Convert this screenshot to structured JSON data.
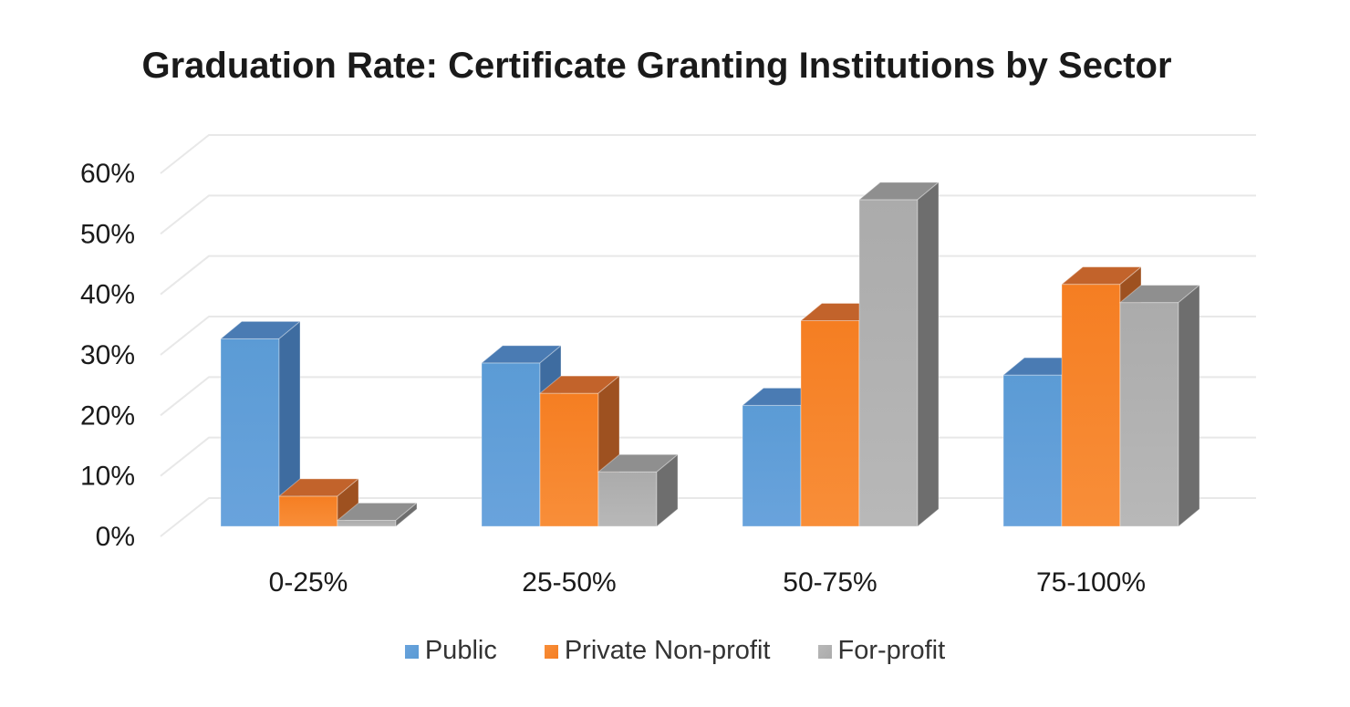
{
  "chart_data": {
    "type": "bar",
    "variant": "3d-column",
    "title": "Graduation Rate: Certificate Granting Institutions by Sector",
    "categories": [
      "0-25%",
      "25-50%",
      "50-75%",
      "75-100%"
    ],
    "series": [
      {
        "name": "Public",
        "values": [
          31,
          27,
          20,
          25
        ],
        "colors": {
          "front": "#5B9BD5",
          "front_light": "#69A3DC",
          "top": "#4A7BB3",
          "side": "#3E6CA0"
        }
      },
      {
        "name": "Private Non-profit",
        "values": [
          5,
          22,
          34,
          40
        ],
        "colors": {
          "front": "#F57E22",
          "front_light": "#F88E39",
          "top": "#C2632B",
          "side": "#9E5120"
        }
      },
      {
        "name": "For-profit",
        "values": [
          1,
          9,
          54,
          37
        ],
        "colors": {
          "front": "#ABABAB",
          "front_light": "#B8B8B8",
          "top": "#8F8F8F",
          "side": "#6E6E6E"
        }
      }
    ],
    "y_axis": {
      "min": 0,
      "max": 60,
      "tick_step": 10,
      "tick_labels": [
        "0%",
        "10%",
        "20%",
        "30%",
        "40%",
        "50%",
        "60%"
      ],
      "unit": "%"
    },
    "x_axis": {
      "tick_labels": [
        "0-25%",
        "25-50%",
        "50-75%",
        "75-100%"
      ]
    },
    "legend_position": "bottom",
    "grid": true,
    "gridline_color": "#E8E8E8",
    "background_color": "#FFFFFF",
    "title_color": "#1A1A1A"
  }
}
